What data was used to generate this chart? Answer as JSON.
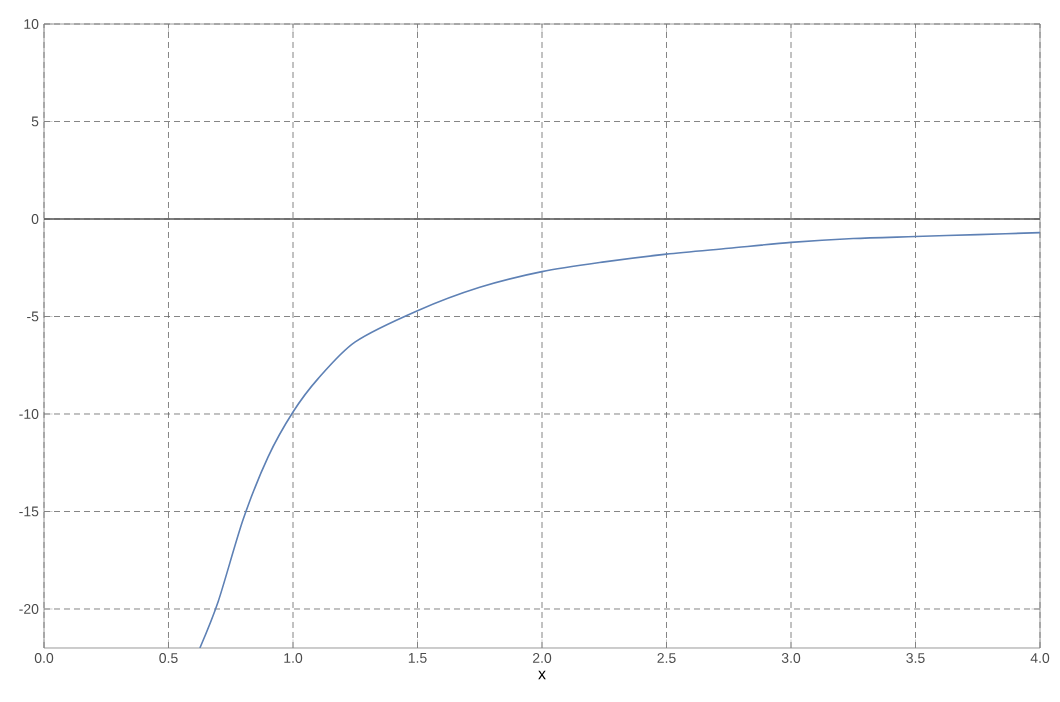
{
  "chart_data": {
    "type": "line",
    "xlabel": "x",
    "series": [
      {
        "color": "#5e81b5",
        "x": [
          0.626,
          0.7,
          0.8,
          0.9,
          1.0,
          1.1,
          1.25,
          1.5,
          1.75,
          2.0,
          2.25,
          2.5,
          2.75,
          3.0,
          3.25,
          3.5,
          3.75,
          4.0
        ],
        "values": [
          -22,
          -19.6,
          -15.4,
          -12.2,
          -9.9,
          -8.2,
          -6.3,
          -4.7,
          -3.5,
          -2.7,
          -2.2,
          -1.8,
          -1.5,
          -1.2,
          -1.0,
          -0.9,
          -0.8,
          -0.7
        ]
      }
    ],
    "xlim": [
      0,
      4
    ],
    "ylim": [
      -22,
      10
    ],
    "xticks": [
      {
        "value": 0,
        "label": "0.0"
      },
      {
        "value": 0.5,
        "label": "0.5"
      },
      {
        "value": 1,
        "label": "1.0"
      },
      {
        "value": 1.5,
        "label": "1.5"
      },
      {
        "value": 2,
        "label": "2.0"
      },
      {
        "value": 2.5,
        "label": "2.5"
      },
      {
        "value": 3,
        "label": "3.0"
      },
      {
        "value": 3.5,
        "label": "3.5"
      },
      {
        "value": 4,
        "label": "4.0"
      }
    ],
    "yticks": [
      -20,
      -15,
      -10,
      -5,
      0,
      5,
      10
    ],
    "ref_lines": [
      {
        "axis": "y",
        "value": 0,
        "color": "#555555"
      }
    ],
    "grid": true,
    "marker": "none",
    "line_style": "solid"
  }
}
